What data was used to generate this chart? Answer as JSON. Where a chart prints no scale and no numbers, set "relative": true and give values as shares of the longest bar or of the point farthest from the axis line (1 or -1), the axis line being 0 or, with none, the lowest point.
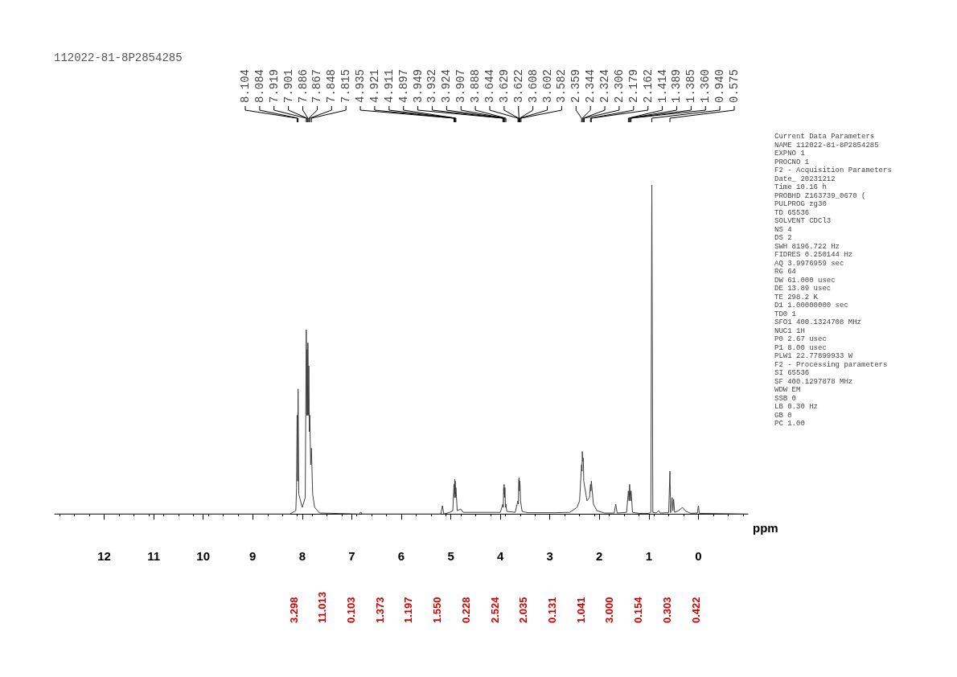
{
  "chart_data": {
    "type": "line",
    "title": "112022-81-8P2854285",
    "xlabel": "ppm",
    "subtitle": "Current Data Parameters\nNAME 112022-81-8P2854285\nEXPNO 1\nPROCNO 1\nF2 - Acquisition Parameters\nDate_ 20231212\nTime 10.16 h\nPROBHD Z163739_0670 (\nPULPROG zg30\nTD 65536\nSOLVENT CDCl3\nNS 4\nDS 2\nSWH 8196.722 Hz\nFIDRES 0.250144 Hz\nAQ 3.9976959 sec\nRG 64\nDW 61.000 usec\nDE 13.89 usec\nTE 298.2 K\nD1 1.00000000 sec\nTD0 1\nSFO1 400.1324708 MHz\nNUC1 1H\nP0 2.67 usec\nP1 8.00 usec\nPLW1 22.77899933 W\nF2 - Processing parameters\nSI 65536\nSF 400.1297878 MHz\nWDW EM\nSSB 0\nLB 0.30 Hz\nGB 0\nPC 1.00",
    "relative": true,
    "color": "#404040",
    "marker": "none",
    "grid": false,
    "tick_labels": "x",
    "xlim": [
      13,
      -1
    ],
    "xticks": [
      12,
      11,
      10,
      9,
      8,
      7,
      6,
      5,
      4,
      3,
      2,
      1,
      0
    ],
    "x": [
      13.0,
      8.25,
      8.13,
      8.115,
      8.104,
      8.095,
      8.084,
      8.07,
      8.0,
      7.94,
      7.919,
      7.91,
      7.901,
      7.895,
      7.886,
      7.875,
      7.867,
      7.858,
      7.848,
      7.83,
      7.815,
      7.79,
      7.75,
      7.65,
      6.85,
      6.82,
      6.79,
      5.2,
      5.17,
      5.14,
      5.02,
      4.96,
      4.935,
      4.928,
      4.921,
      4.916,
      4.911,
      4.903,
      4.897,
      4.87,
      4.8,
      4.75,
      4.3,
      4.0,
      3.949,
      3.94,
      3.932,
      3.928,
      3.924,
      3.915,
      3.907,
      3.895,
      3.888,
      3.87,
      3.7,
      3.644,
      3.635,
      3.629,
      3.622,
      3.615,
      3.608,
      3.602,
      3.592,
      3.582,
      3.56,
      3.45,
      2.9,
      2.6,
      2.45,
      2.4,
      2.359,
      2.35,
      2.344,
      2.335,
      2.324,
      2.315,
      2.306,
      2.25,
      2.2,
      2.179,
      2.17,
      2.162,
      2.12,
      2.05,
      1.9,
      1.7,
      1.67,
      1.64,
      1.45,
      1.414,
      1.4,
      1.389,
      1.385,
      1.372,
      1.36,
      1.33,
      1.2,
      1.0,
      0.96,
      0.94,
      0.92,
      0.85,
      0.8,
      0.77,
      0.6,
      0.575,
      0.56,
      0.53,
      0.515,
      0.5,
      0.48,
      0.4,
      0.32,
      0.25,
      0.15,
      0.02,
      0.0,
      -0.02,
      -1.0
    ],
    "values": [
      0,
      0,
      0.01,
      0.08,
      0.3,
      0.1,
      0.38,
      0.06,
      0.02,
      0.05,
      0.56,
      0.3,
      0.5,
      0.3,
      0.52,
      0.3,
      0.45,
      0.25,
      0.3,
      0.15,
      0.2,
      0.06,
      0.02,
      0.003,
      0,
      0.006,
      0,
      0,
      0.025,
      0,
      0.005,
      0.01,
      0.09,
      0.05,
      0.105,
      0.06,
      0.1,
      0.05,
      0.08,
      0.01,
      0.015,
      0.005,
      0.005,
      0.005,
      0.03,
      0.02,
      0.08,
      0.06,
      0.09,
      0.05,
      0.08,
      0.02,
      0.03,
      0.008,
      0.005,
      0.04,
      0.03,
      0.1,
      0.11,
      0.07,
      0.1,
      0.09,
      0.04,
      0.04,
      0.008,
      0.004,
      0.004,
      0.005,
      0.02,
      0.04,
      0.15,
      0.13,
      0.19,
      0.16,
      0.17,
      0.1,
      0.1,
      0.04,
      0.05,
      0.09,
      0.07,
      0.1,
      0.03,
      0.01,
      0.003,
      0.003,
      0.03,
      0.003,
      0.005,
      0.07,
      0.04,
      0.09,
      0.09,
      0.04,
      0.07,
      0.005,
      0.002,
      0.002,
      0.005,
      1.0,
      0.005,
      0.003,
      0.01,
      0.003,
      0.004,
      0.13,
      0.004,
      0.05,
      0.01,
      0.045,
      0.005,
      0.01,
      0.02,
      0.008,
      0.002,
      0.003,
      0.025,
      0.002,
      0
    ],
    "annotations": [
      {
        "text": "8.104",
        "x": 8.104
      },
      {
        "text": "8.084",
        "x": 8.084
      },
      {
        "text": "7.919",
        "x": 7.919
      },
      {
        "text": "7.901",
        "x": 7.901
      },
      {
        "text": "7.886",
        "x": 7.886
      },
      {
        "text": "7.867",
        "x": 7.867
      },
      {
        "text": "7.848",
        "x": 7.848
      },
      {
        "text": "7.815",
        "x": 7.815
      },
      {
        "text": "4.935",
        "x": 4.935
      },
      {
        "text": "4.921",
        "x": 4.921
      },
      {
        "text": "4.911",
        "x": 4.911
      },
      {
        "text": "4.897",
        "x": 4.897
      },
      {
        "text": "3.949",
        "x": 3.949
      },
      {
        "text": "3.932",
        "x": 3.932
      },
      {
        "text": "3.924",
        "x": 3.924
      },
      {
        "text": "3.907",
        "x": 3.907
      },
      {
        "text": "3.888",
        "x": 3.888
      },
      {
        "text": "3.644",
        "x": 3.644
      },
      {
        "text": "3.629",
        "x": 3.629
      },
      {
        "text": "3.622",
        "x": 3.622
      },
      {
        "text": "3.608",
        "x": 3.608
      },
      {
        "text": "3.602",
        "x": 3.602
      },
      {
        "text": "3.582",
        "x": 3.582
      },
      {
        "text": "2.359",
        "x": 2.359
      },
      {
        "text": "2.344",
        "x": 2.344
      },
      {
        "text": "2.324",
        "x": 2.324
      },
      {
        "text": "2.306",
        "x": 2.306
      },
      {
        "text": "2.179",
        "x": 2.179
      },
      {
        "text": "2.162",
        "x": 2.162
      },
      {
        "text": "1.414",
        "x": 1.414
      },
      {
        "text": "1.389",
        "x": 1.389
      },
      {
        "text": "1.385",
        "x": 1.385
      },
      {
        "text": "1.360",
        "x": 1.36
      },
      {
        "text": "0.940",
        "x": 0.94
      },
      {
        "text": "0.575",
        "x": 0.575
      },
      "3.298",
      "11.013",
      "0.103",
      "1.373",
      "1.197",
      "1.550",
      "0.228",
      "2.524",
      "2.035",
      "0.131",
      "1.041",
      "3.000",
      "0.154",
      "0.303",
      "0.422"
    ]
  }
}
